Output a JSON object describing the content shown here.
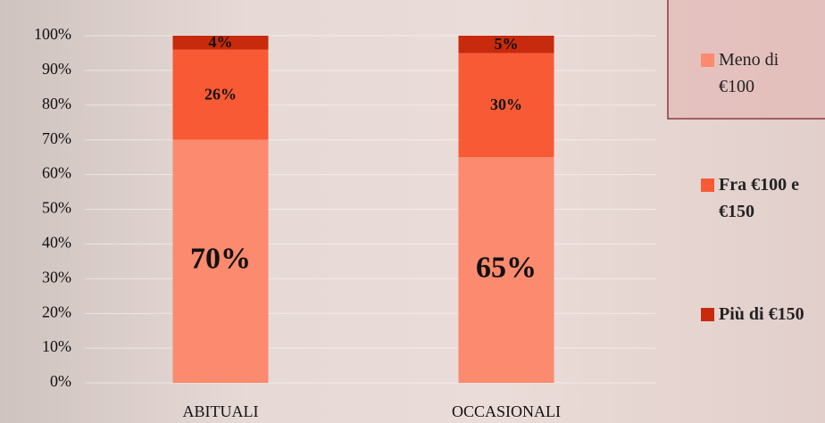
{
  "chart_data": {
    "type": "stacked_bar",
    "categories": [
      "ABITUALI",
      "OCCASIONALI"
    ],
    "series": [
      {
        "name": "Meno di €100",
        "color": "#fb8a6e",
        "values": [
          70,
          65
        ],
        "value_labels": [
          "70%",
          "65%"
        ]
      },
      {
        "name": "Fra €100 e €150",
        "color": "#f75a35",
        "values": [
          26,
          30
        ],
        "value_labels": [
          "26%",
          "30%"
        ]
      },
      {
        "name": "Più di €150",
        "color": "#c72a0c",
        "values": [
          4,
          5
        ],
        "value_labels": [
          "4%",
          "5%"
        ]
      }
    ],
    "ylim": [
      0,
      100
    ],
    "yticks": [
      {
        "value": 0,
        "label": "0%"
      },
      {
        "value": 10,
        "label": "10%"
      },
      {
        "value": 20,
        "label": "20%"
      },
      {
        "value": 30,
        "label": "30%"
      },
      {
        "value": 40,
        "label": "40%"
      },
      {
        "value": 50,
        "label": "50%"
      },
      {
        "value": 60,
        "label": "60%"
      },
      {
        "value": 70,
        "label": "70%"
      },
      {
        "value": 80,
        "label": "80%"
      },
      {
        "value": 90,
        "label": "90%"
      },
      {
        "value": 100,
        "label": "100%"
      }
    ],
    "grid": true
  }
}
